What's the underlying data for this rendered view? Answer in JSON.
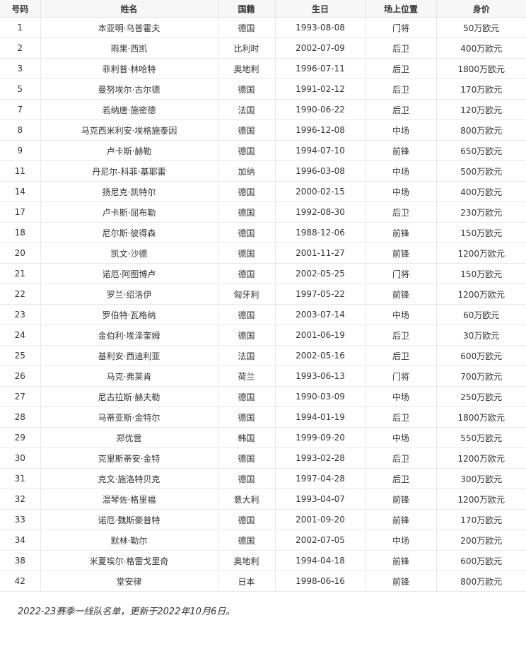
{
  "table": {
    "headers": [
      "号码",
      "姓名",
      "国籍",
      "生日",
      "场上位置",
      "身价"
    ],
    "rows": [
      [
        "1",
        "本亚明·乌普霍夫",
        "德国",
        "1993-08-08",
        "门将",
        "50万欧元"
      ],
      [
        "2",
        "雨果·西凯",
        "比利时",
        "2002-07-09",
        "后卫",
        "400万欧元"
      ],
      [
        "3",
        "菲利普·林哈特",
        "奥地利",
        "1996-07-11",
        "后卫",
        "1800万欧元"
      ],
      [
        "5",
        "曼努埃尔·古尔德",
        "德国",
        "1991-02-12",
        "后卫",
        "170万欧元"
      ],
      [
        "7",
        "若纳唐·施密德",
        "法国",
        "1990-06-22",
        "后卫",
        "120万欧元"
      ],
      [
        "8",
        "马克西米利安·埃格施泰因",
        "德国",
        "1996-12-08",
        "中场",
        "800万欧元"
      ],
      [
        "9",
        "卢卡斯·赫勒",
        "德国",
        "1994-07-10",
        "前锋",
        "650万欧元"
      ],
      [
        "11",
        "丹尼尔-科菲·基耶雷",
        "加纳",
        "1996-03-08",
        "中场",
        "500万欧元"
      ],
      [
        "14",
        "扬尼克·凯特尔",
        "德国",
        "2000-02-15",
        "中场",
        "400万欧元"
      ],
      [
        "17",
        "卢卡斯·屈布勒",
        "德国",
        "1992-08-30",
        "后卫",
        "230万欧元"
      ],
      [
        "18",
        "尼尔斯·彼得森",
        "德国",
        "1988-12-06",
        "前锋",
        "150万欧元"
      ],
      [
        "20",
        "凯文·沙德",
        "德国",
        "2001-11-27",
        "前锋",
        "1200万欧元"
      ],
      [
        "21",
        "诺厄·阿图博卢",
        "德国",
        "2002-05-25",
        "门将",
        "150万欧元"
      ],
      [
        "22",
        "罗兰·绍洛伊",
        "匈牙利",
        "1997-05-22",
        "前锋",
        "1200万欧元"
      ],
      [
        "23",
        "罗伯特·瓦格纳",
        "德国",
        "2003-07-14",
        "中场",
        "60万欧元"
      ],
      [
        "24",
        "金伯利·埃泽奎姆",
        "德国",
        "2001-06-19",
        "后卫",
        "30万欧元"
      ],
      [
        "25",
        "基利安·西迪利亚",
        "法国",
        "2002-05-16",
        "后卫",
        "600万欧元"
      ],
      [
        "26",
        "马克·弗莱肯",
        "荷兰",
        "1993-06-13",
        "门将",
        "700万欧元"
      ],
      [
        "27",
        "尼古拉斯·赫夫勒",
        "德国",
        "1990-03-09",
        "中场",
        "250万欧元"
      ],
      [
        "28",
        "马蒂亚斯·金特尔",
        "德国",
        "1994-01-19",
        "后卫",
        "1800万欧元"
      ],
      [
        "29",
        "郑优营",
        "韩国",
        "1999-09-20",
        "中场",
        "550万欧元"
      ],
      [
        "30",
        "克里斯蒂安·金特",
        "德国",
        "1993-02-28",
        "后卫",
        "1200万欧元"
      ],
      [
        "31",
        "克文·施洛特贝克",
        "德国",
        "1997-04-28",
        "后卫",
        "300万欧元"
      ],
      [
        "32",
        "温琴佐·格里福",
        "意大利",
        "1993-04-07",
        "前锋",
        "1200万欧元"
      ],
      [
        "33",
        "诺厄·魏斯豪普特",
        "德国",
        "2001-09-20",
        "前锋",
        "170万欧元"
      ],
      [
        "34",
        "默林·勒尔",
        "德国",
        "2002-07-05",
        "中场",
        "200万欧元"
      ],
      [
        "38",
        "米夏埃尔·格雷戈里奇",
        "奥地利",
        "1994-04-18",
        "前锋",
        "600万欧元"
      ],
      [
        "42",
        "堂安律",
        "日本",
        "1998-06-16",
        "前锋",
        "800万欧元"
      ]
    ]
  },
  "caption": "2022-23赛季一线队名单，更新于2022年10月6日。"
}
